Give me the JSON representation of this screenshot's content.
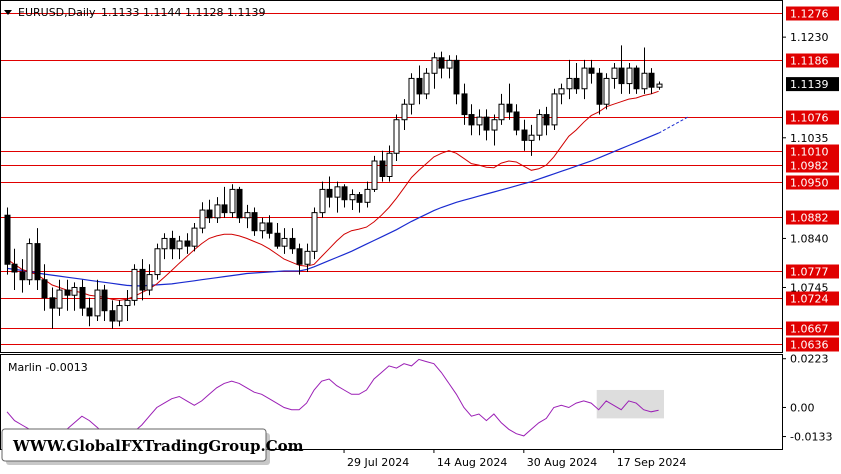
{
  "title": {
    "symbol": "EURUSD,Daily",
    "ohlc": "1.1133 1.1144 1.1128 1.1139"
  },
  "watermark": "WWW.GlobalFXTradingGroup.Com",
  "colors": {
    "level_line": "#e00000",
    "level_tag_bg": "#e00000",
    "ma_fast": "#d00000",
    "ma_slow": "#1a2bd0",
    "marlin": "#9b1fb5",
    "price_tag_bg": "#000000",
    "grid_border": "#000000"
  },
  "chart_data": [
    {
      "type": "candlestick",
      "name": "price",
      "ylim": [
        1.062,
        1.13
      ],
      "price_tags": [
        "1.1230",
        "1.1035",
        "1.0840",
        "1.0745"
      ],
      "current_price": "1.1139",
      "levels": [
        {
          "label": "1.1276",
          "value": 1.1276
        },
        {
          "label": "1.1186",
          "value": 1.1186
        },
        {
          "label": "1.1076",
          "value": 1.1076
        },
        {
          "label": "1.1010",
          "value": 1.101
        },
        {
          "label": "1.0982",
          "value": 1.0982
        },
        {
          "label": "1.0950",
          "value": 1.095
        },
        {
          "label": "1.0882",
          "value": 1.0882
        },
        {
          "label": "1.0777",
          "value": 1.0777
        },
        {
          "label": "1.0724",
          "value": 1.0724
        },
        {
          "label": "1.0667",
          "value": 1.0667
        },
        {
          "label": "1.0636",
          "value": 1.0636
        }
      ],
      "x_labels": [
        {
          "text": "29 Jul 2024",
          "index": 45
        },
        {
          "text": "14 Aug 2024",
          "index": 57
        },
        {
          "text": "30 Aug 2024",
          "index": 69
        },
        {
          "text": "17 Sep 2024",
          "index": 81
        }
      ],
      "candles": [
        [
          1.0885,
          1.09,
          1.077,
          1.079
        ],
        [
          1.079,
          1.082,
          1.074,
          1.0775
        ],
        [
          1.0775,
          1.08,
          1.0735,
          1.076
        ],
        [
          1.076,
          1.084,
          1.075,
          1.083
        ],
        [
          1.083,
          1.086,
          1.074,
          1.076
        ],
        [
          1.076,
          1.079,
          1.07,
          1.0725
        ],
        [
          1.0725,
          1.0745,
          1.0665,
          1.0705
        ],
        [
          1.0705,
          1.076,
          1.069,
          1.074
        ],
        [
          1.074,
          1.076,
          1.07,
          1.073
        ],
        [
          1.073,
          1.0755,
          1.07,
          1.0745
        ],
        [
          1.0745,
          1.076,
          1.069,
          1.0705
        ],
        [
          1.0705,
          1.0725,
          1.067,
          1.069
        ],
        [
          1.069,
          1.076,
          1.068,
          1.074
        ],
        [
          1.074,
          1.075,
          1.068,
          1.07
        ],
        [
          1.07,
          1.072,
          1.0665,
          1.068
        ],
        [
          1.068,
          1.072,
          1.067,
          1.071
        ],
        [
          1.071,
          1.074,
          1.068,
          1.072
        ],
        [
          1.072,
          1.079,
          1.071,
          1.078
        ],
        [
          1.078,
          1.08,
          1.072,
          1.074
        ],
        [
          1.074,
          1.079,
          1.073,
          1.077
        ],
        [
          1.077,
          1.083,
          1.076,
          1.082
        ],
        [
          1.082,
          1.085,
          1.08,
          1.084
        ],
        [
          1.084,
          1.0855,
          1.08,
          1.082
        ],
        [
          1.082,
          1.0845,
          1.08,
          1.0835
        ],
        [
          1.0835,
          1.085,
          1.081,
          1.0825
        ],
        [
          1.0825,
          1.087,
          1.0815,
          1.086
        ],
        [
          1.086,
          1.091,
          1.085,
          1.0895
        ],
        [
          1.0895,
          1.0915,
          1.087,
          1.088
        ],
        [
          1.088,
          1.092,
          1.087,
          1.0905
        ],
        [
          1.0905,
          1.094,
          1.088,
          1.089
        ],
        [
          1.089,
          1.0945,
          1.088,
          1.0935
        ],
        [
          1.0935,
          1.094,
          1.087,
          1.088
        ],
        [
          1.088,
          1.0905,
          1.086,
          1.089
        ],
        [
          1.089,
          1.09,
          1.0845,
          1.0855
        ],
        [
          1.0855,
          1.088,
          1.084,
          1.087
        ],
        [
          1.087,
          1.0885,
          1.084,
          1.085
        ],
        [
          1.085,
          1.087,
          1.082,
          1.0825
        ],
        [
          1.0825,
          1.086,
          1.081,
          1.084
        ],
        [
          1.084,
          1.086,
          1.081,
          1.082
        ],
        [
          1.082,
          1.083,
          1.077,
          1.079
        ],
        [
          1.079,
          1.083,
          1.0775,
          1.0815
        ],
        [
          1.0815,
          1.09,
          1.08,
          1.089
        ],
        [
          1.089,
          1.095,
          1.088,
          1.0935
        ],
        [
          1.0935,
          1.096,
          1.09,
          1.092
        ],
        [
          1.092,
          1.095,
          1.089,
          1.094
        ],
        [
          1.094,
          1.0945,
          1.09,
          1.0915
        ],
        [
          1.0915,
          1.0935,
          1.0895,
          1.0925
        ],
        [
          1.0925,
          1.093,
          1.089,
          1.091
        ],
        [
          1.091,
          1.095,
          1.09,
          1.0935
        ],
        [
          1.0935,
          1.1,
          1.093,
          1.099
        ],
        [
          1.099,
          1.101,
          1.095,
          1.096
        ],
        [
          1.096,
          1.102,
          1.095,
          1.1005
        ],
        [
          1.1005,
          1.108,
          1.099,
          1.107
        ],
        [
          1.107,
          1.111,
          1.105,
          1.11
        ],
        [
          1.11,
          1.116,
          1.108,
          1.115
        ],
        [
          1.115,
          1.1175,
          1.11,
          1.112
        ],
        [
          1.112,
          1.117,
          1.111,
          1.116
        ],
        [
          1.116,
          1.12,
          1.113,
          1.119
        ],
        [
          1.119,
          1.1202,
          1.115,
          1.117
        ],
        [
          1.117,
          1.1195,
          1.115,
          1.1185
        ],
        [
          1.1185,
          1.1195,
          1.11,
          1.112
        ],
        [
          1.112,
          1.114,
          1.106,
          1.108
        ],
        [
          1.108,
          1.11,
          1.104,
          1.106
        ],
        [
          1.106,
          1.109,
          1.104,
          1.1075
        ],
        [
          1.1075,
          1.109,
          1.103,
          1.105
        ],
        [
          1.105,
          1.108,
          1.102,
          1.107
        ],
        [
          1.107,
          1.112,
          1.106,
          1.11
        ],
        [
          1.11,
          1.114,
          1.107,
          1.1085
        ],
        [
          1.1085,
          1.11,
          1.104,
          1.105
        ],
        [
          1.105,
          1.107,
          1.101,
          1.103
        ],
        [
          1.103,
          1.106,
          1.1,
          1.104
        ],
        [
          1.104,
          1.109,
          1.103,
          1.108
        ],
        [
          1.108,
          1.1095,
          1.104,
          1.106
        ],
        [
          1.106,
          1.113,
          1.105,
          1.112
        ],
        [
          1.112,
          1.114,
          1.11,
          1.113
        ],
        [
          1.113,
          1.1186,
          1.111,
          1.115
        ],
        [
          1.115,
          1.118,
          1.112,
          1.113
        ],
        [
          1.113,
          1.1186,
          1.111,
          1.117
        ],
        [
          1.117,
          1.1186,
          1.114,
          1.116
        ],
        [
          1.116,
          1.117,
          1.108,
          1.11
        ],
        [
          1.11,
          1.116,
          1.109,
          1.115
        ],
        [
          1.115,
          1.118,
          1.113,
          1.117
        ],
        [
          1.117,
          1.1214,
          1.112,
          1.114
        ],
        [
          1.114,
          1.118,
          1.112,
          1.117
        ],
        [
          1.117,
          1.1175,
          1.112,
          1.113
        ],
        [
          1.113,
          1.121,
          1.112,
          1.116
        ],
        [
          1.116,
          1.117,
          1.112,
          1.1133
        ],
        [
          1.1133,
          1.1144,
          1.1128,
          1.1139
        ]
      ],
      "ma_fast": [
        1.08,
        1.079,
        1.078,
        1.0775,
        1.077,
        1.076,
        1.075,
        1.0745,
        1.074,
        1.0738,
        1.0735,
        1.073,
        1.0728,
        1.0726,
        1.0722,
        1.072,
        1.0722,
        1.0728,
        1.0735,
        1.0742,
        1.0752,
        1.0765,
        1.0778,
        1.0792,
        1.0805,
        1.0818,
        1.083,
        1.084,
        1.0845,
        1.0848,
        1.0848,
        1.0845,
        1.084,
        1.0834,
        1.0828,
        1.082,
        1.081,
        1.08,
        1.0794,
        1.0788,
        1.0786,
        1.079,
        1.0805,
        1.082,
        1.0835,
        1.0848,
        1.0855,
        1.0858,
        1.0862,
        1.0872,
        1.0885,
        1.09,
        1.0918,
        1.0938,
        1.0958,
        1.0972,
        1.0985,
        1.0998,
        1.1005,
        1.101,
        1.1005,
        1.0995,
        1.0985,
        1.0982,
        1.0978,
        1.0977,
        1.0986,
        1.099,
        1.0988,
        1.098,
        1.0972,
        1.0975,
        1.0982,
        1.0998,
        1.1018,
        1.1038,
        1.105,
        1.1065,
        1.1078,
        1.1085,
        1.1095,
        1.11,
        1.1105,
        1.111,
        1.1112,
        1.1117,
        1.112,
        1.1125
      ],
      "ma_slow": [
        1.0782,
        1.078,
        1.0778,
        1.0776,
        1.0773,
        1.0771,
        1.0769,
        1.0767,
        1.0765,
        1.0763,
        1.0761,
        1.0759,
        1.0757,
        1.0755,
        1.0753,
        1.0751,
        1.0749,
        1.0748,
        1.0748,
        1.0749,
        1.075,
        1.0751,
        1.0752,
        1.0754,
        1.0756,
        1.0758,
        1.076,
        1.0762,
        1.0764,
        1.0766,
        1.0768,
        1.077,
        1.0772,
        1.0773,
        1.0774,
        1.0775,
        1.0776,
        1.0777,
        1.0777,
        1.0777,
        1.078,
        1.0785,
        1.0791,
        1.0797,
        1.0803,
        1.0809,
        1.0815,
        1.0822,
        1.0829,
        1.0836,
        1.0843,
        1.085,
        1.0857,
        1.0865,
        1.0873,
        1.088,
        1.0887,
        1.0894,
        1.09,
        1.0905,
        1.091,
        1.0914,
        1.0918,
        1.0922,
        1.0926,
        1.093,
        1.0934,
        1.0938,
        1.0942,
        1.0946,
        1.095,
        1.0955,
        1.096,
        1.0965,
        1.097,
        1.0975,
        1.098,
        1.0985,
        1.099,
        1.0996,
        1.1002,
        1.1008,
        1.1014,
        1.102,
        1.1026,
        1.1032,
        1.1038,
        1.1044
      ],
      "ma_slow_projection": [
        1.1044,
        1.1076
      ]
    },
    {
      "type": "line",
      "name": "Marlin",
      "label": "Marlin -0.0013",
      "ylim": [
        -0.019,
        0.024
      ],
      "ticks": [
        {
          "label": "0.0223",
          "value": 0.0223
        },
        {
          "label": "0.00",
          "value": 0.0
        },
        {
          "label": "-0.0133",
          "value": -0.0133
        }
      ],
      "values": [
        -0.002,
        -0.006,
        -0.008,
        -0.01,
        -0.012,
        -0.014,
        -0.015,
        -0.013,
        -0.01,
        -0.007,
        -0.004,
        -0.006,
        -0.009,
        -0.012,
        -0.014,
        -0.015,
        -0.013,
        -0.011,
        -0.008,
        -0.004,
        0.0,
        0.002,
        0.004,
        0.005,
        0.003,
        0.001,
        0.003,
        0.006,
        0.009,
        0.011,
        0.012,
        0.011,
        0.009,
        0.007,
        0.006,
        0.004,
        0.002,
        0.0,
        -0.001,
        -0.001,
        0.002,
        0.008,
        0.012,
        0.013,
        0.01,
        0.008,
        0.006,
        0.006,
        0.008,
        0.013,
        0.016,
        0.019,
        0.018,
        0.02,
        0.019,
        0.022,
        0.021,
        0.02,
        0.016,
        0.011,
        0.006,
        0.0,
        -0.004,
        -0.003,
        -0.006,
        -0.003,
        -0.007,
        -0.01,
        -0.012,
        -0.013,
        -0.01,
        -0.007,
        -0.005,
        0.0,
        0.001,
        0.0,
        0.002,
        0.003,
        0.002,
        -0.001,
        0.003,
        0.001,
        -0.001,
        0.003,
        0.002,
        -0.001,
        -0.002,
        -0.0013
      ],
      "highlight_from_index": 79
    }
  ]
}
